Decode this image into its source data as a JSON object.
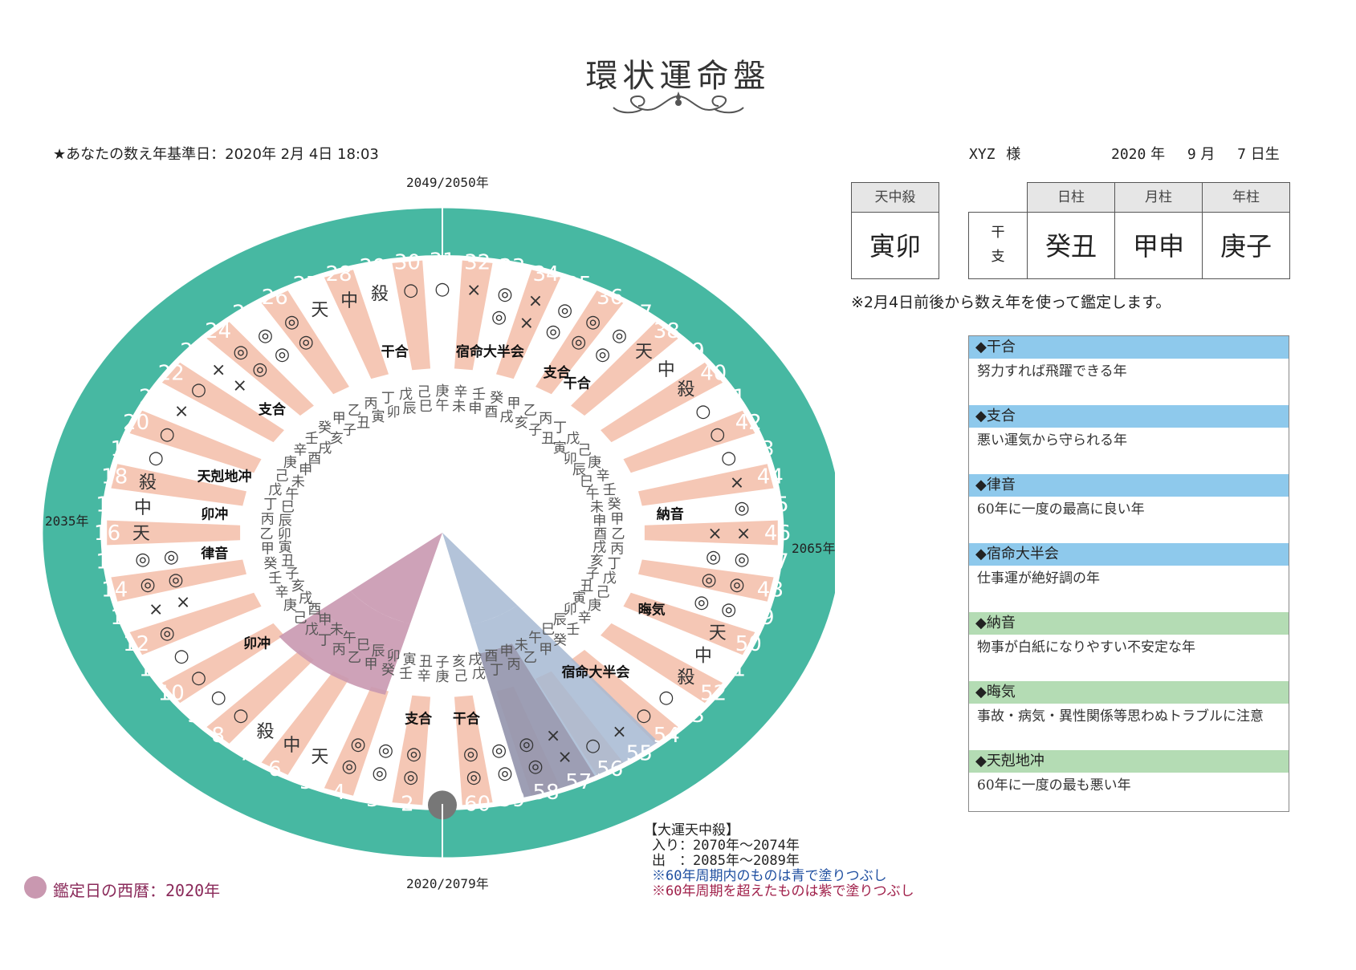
{
  "title": "環状運命盤",
  "base_date": "★あなたの数え年基準日：2020年 2月 4日 18:03",
  "client": {
    "name": "XYZ",
    "honorific": "様",
    "birth_year": "2020",
    "year_suffix": "年",
    "birth_month": "9",
    "month_suffix": "月",
    "birth_day": "7",
    "day_suffix": "日生"
  },
  "tenchusatsu": {
    "label": "天中殺",
    "value": "寅卯"
  },
  "pillars": {
    "row_label_1": "干",
    "row_label_2": "支",
    "headers": [
      "日柱",
      "月柱",
      "年柱"
    ],
    "values": [
      "癸丑",
      "甲申",
      "庚子"
    ]
  },
  "note": "※2月4日前後から数え年を使って鑑定します。",
  "legend": [
    {
      "title": "◆干合",
      "desc": "努力すれば飛躍できる年",
      "color": "blue"
    },
    {
      "title": "◆支合",
      "desc": "悪い運気から守られる年",
      "color": "blue"
    },
    {
      "title": "◆律音",
      "desc": "60年に一度の最高に良い年",
      "color": "blue"
    },
    {
      "title": "◆宿命大半会",
      "desc": "仕事運が絶好調の年",
      "color": "blue"
    },
    {
      "title": "◆納音",
      "desc": "物事が白紙になりやすい不安定な年",
      "color": "green"
    },
    {
      "title": "◆晦気",
      "desc": "事故・病気・異性関係等思わぬトラブルに注意",
      "color": "green"
    },
    {
      "title": "◆天剋地冲",
      "desc": "60年に一度の最も悪い年",
      "color": "green"
    }
  ],
  "wheel": {
    "year_labels": {
      "top": "2049/2050年",
      "bottom": "2020/2079年",
      "left": "2035年",
      "right": "2065年"
    },
    "ages": [
      "1",
      "2",
      "3",
      "4",
      "5",
      "6",
      "7",
      "8",
      "9",
      "10",
      "11",
      "12",
      "13",
      "14",
      "15",
      "16",
      "17",
      "18",
      "19",
      "20",
      "21",
      "22",
      "23",
      "24",
      "25",
      "26",
      "27",
      "28",
      "29",
      "30",
      "31",
      "32",
      "33",
      "34",
      "35",
      "36",
      "37",
      "38",
      "39",
      "40",
      "41",
      "42",
      "43",
      "44",
      "45",
      "46",
      "47",
      "48",
      "49",
      "50",
      "51",
      "52",
      "53",
      "54",
      "55",
      "56",
      "57",
      "58",
      "59",
      "60"
    ],
    "kanshi": [
      "庚子",
      "辛丑",
      "壬寅",
      "癸卯",
      "甲辰",
      "乙巳",
      "丙午",
      "丁未",
      "戊申",
      "己酉",
      "庚戌",
      "辛亥",
      "壬子",
      "癸丑",
      "甲寅",
      "乙卯",
      "丙辰",
      "丁巳",
      "戊午",
      "己未",
      "庚申",
      "辛酉",
      "壬戌",
      "癸亥",
      "甲子",
      "乙丑",
      "丙寅",
      "丁卯",
      "戊辰",
      "己巳",
      "庚午",
      "辛未",
      "壬申",
      "癸酉",
      "甲戌",
      "乙亥",
      "丙子",
      "丁丑",
      "戊寅",
      "己卯",
      "庚辰",
      "辛巳",
      "壬午",
      "癸未",
      "甲申",
      "乙酉",
      "丙戌",
      "丁亥",
      "戊子",
      "己丑",
      "庚寅",
      "辛卯",
      "壬辰",
      "癸巳",
      "甲午",
      "乙未",
      "丙申",
      "丁酉",
      "戊戌",
      "己亥"
    ],
    "marks1": [
      "",
      "◎",
      "◎",
      "◎",
      "天",
      "中",
      "殺",
      "○",
      "○",
      "○",
      "○",
      "◎",
      "×",
      "◎",
      "◎",
      "天",
      "中",
      "殺",
      "○",
      "○",
      "×",
      "○",
      "×",
      "◎",
      "◎",
      "◎",
      "天",
      "中",
      "殺",
      "○",
      "○",
      "×",
      "◎",
      "×",
      "◎",
      "◎",
      "◎",
      "天",
      "中",
      "殺",
      "○",
      "○",
      "○",
      "×",
      "◎",
      "×",
      "◎",
      "◎",
      "◎",
      "天",
      "中",
      "殺",
      "○",
      "○",
      "×",
      "○",
      "×",
      "◎",
      "◎",
      "◎"
    ],
    "marks2": [
      "",
      "◎",
      "◎",
      "◎",
      "",
      "",
      "",
      "",
      "",
      "",
      "",
      "",
      "×",
      "◎",
      "◎",
      "",
      "",
      "",
      "",
      "",
      "",
      "",
      "×",
      "◎",
      "◎",
      "◎",
      "",
      "",
      "",
      "",
      "",
      "",
      "◎",
      "×",
      "◎",
      "◎",
      "◎",
      "",
      "",
      "",
      "",
      "",
      "",
      "",
      "",
      "×",
      "◎",
      "◎",
      "◎",
      "",
      "",
      "",
      "",
      "",
      "",
      "",
      "×",
      "◎",
      "◎",
      "◎"
    ],
    "annotations": [
      {
        "age": 2,
        "text": "支合"
      },
      {
        "age": 60,
        "text": "干合"
      },
      {
        "age": 10,
        "text": "卯冲"
      },
      {
        "age": 15,
        "text": "律音"
      },
      {
        "age": 17,
        "text": "卯冲"
      },
      {
        "age": 19,
        "text": "天剋地冲"
      },
      {
        "age": 23,
        "text": "支合"
      },
      {
        "age": 29,
        "text": "干合"
      },
      {
        "age": 33,
        "text": "宿命大半会"
      },
      {
        "age": 36,
        "text": "支合"
      },
      {
        "age": 37,
        "text": "干合"
      },
      {
        "age": 45,
        "text": "納音"
      },
      {
        "age": 50,
        "text": "晦気"
      },
      {
        "age": 54,
        "text": "宿命大半会"
      }
    ],
    "purple_label": "鑑定日の西暦：2020年"
  },
  "daiun": {
    "title": "【大運天中殺】",
    "enter": "入り：2070年～2074年",
    "exit": "出　：2085年～2089年",
    "note_blue": "※60年周期内のものは青で塗りつぶし",
    "note_purple": "※60年周期を超えたものは紫で塗りつぶし"
  },
  "colors": {
    "teal": "#47b8a2",
    "salmon": "#f5c7b5",
    "blue_sector": "#a6b8d2",
    "purple_sector": "#c998b0",
    "dark_overlap": "#8a7f95"
  }
}
